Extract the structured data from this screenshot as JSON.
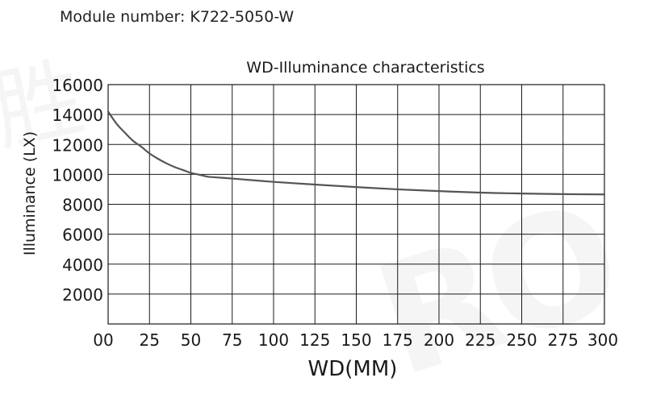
{
  "module_label": "Module number: K722-5050-W",
  "chart_data": {
    "type": "line",
    "title": "WD-Illuminance characteristics",
    "xlabel": "WD(MM)",
    "ylabel": "Illuminance (LX)",
    "x_ticks": [
      "00",
      "25",
      "50",
      "75",
      "100",
      "125",
      "150",
      "175",
      "200",
      "225",
      "250",
      "275",
      "300"
    ],
    "y_ticks": [
      "16000",
      "14000",
      "12000",
      "10000",
      "8000",
      "6000",
      "4000",
      "2000"
    ],
    "xlim": [
      0,
      300
    ],
    "ylim": [
      0,
      16000
    ],
    "grid": true,
    "series": [
      {
        "name": "K722-5050-W",
        "color": "#555555",
        "x": [
          0,
          5,
          10,
          15,
          20,
          25,
          30,
          35,
          40,
          45,
          50,
          55,
          60,
          65,
          75,
          100,
          125,
          150,
          175,
          200,
          225,
          250,
          275,
          300
        ],
        "y": [
          14200,
          13400,
          12800,
          12250,
          11850,
          11400,
          11050,
          10750,
          10500,
          10300,
          10100,
          9980,
          9850,
          9800,
          9720,
          9500,
          9320,
          9150,
          9000,
          8880,
          8780,
          8720,
          8680,
          8660
        ]
      }
    ]
  }
}
